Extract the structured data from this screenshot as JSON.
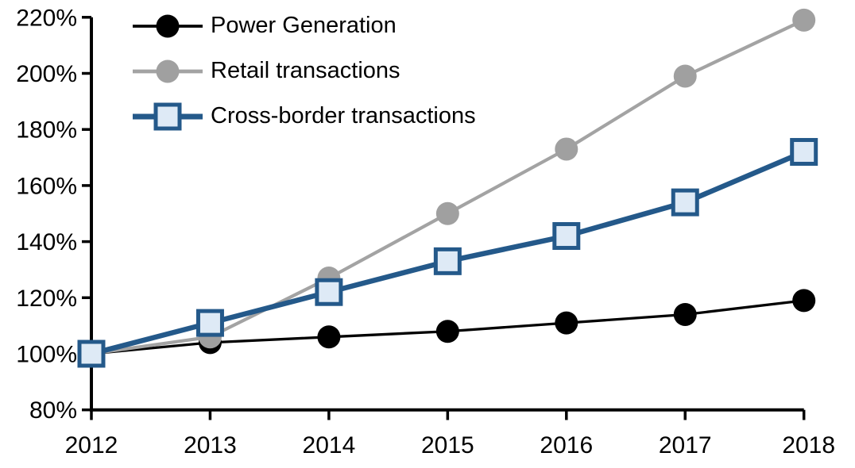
{
  "chart_data": {
    "type": "line",
    "title": "",
    "xlabel": "",
    "ylabel": "",
    "categories": [
      "2012",
      "2013",
      "2014",
      "2015",
      "2016",
      "2017",
      "2018"
    ],
    "series": [
      {
        "name": "Power Generation",
        "line_color": "#000000",
        "marker": "circle",
        "marker_fill": "#000000",
        "marker_stroke": "#000000",
        "line_width": 3.3,
        "values": [
          100,
          104,
          106,
          108,
          111,
          114,
          119
        ]
      },
      {
        "name": "Retail transactions",
        "line_color": "#A3A3A3",
        "marker": "circle",
        "marker_fill": "#A0A0A0",
        "marker_stroke": "#A0A0A0",
        "line_width": 4.2,
        "values": [
          100,
          106,
          127,
          150,
          173,
          199,
          219
        ]
      },
      {
        "name": "Cross-border transactions",
        "line_color": "#24598A",
        "marker": "square",
        "marker_fill": "#DEEAF6",
        "marker_stroke": "#24598A",
        "line_width": 6.5,
        "values": [
          100,
          111,
          122,
          133,
          142,
          154,
          172
        ]
      }
    ],
    "ylim": [
      80,
      220
    ],
    "y_ticks": [
      80,
      100,
      120,
      140,
      160,
      180,
      200,
      220
    ],
    "y_tick_labels": [
      "80%",
      "100%",
      "120%",
      "140%",
      "160%",
      "180%",
      "200%",
      "220%"
    ],
    "x_tick_labels": [
      "2012",
      "2013",
      "2014",
      "2015",
      "2016",
      "2017",
      "2018"
    ],
    "grid": false,
    "legend_position": "top-left",
    "axis_color": "#000000",
    "background_color": "#FFFFFF"
  }
}
